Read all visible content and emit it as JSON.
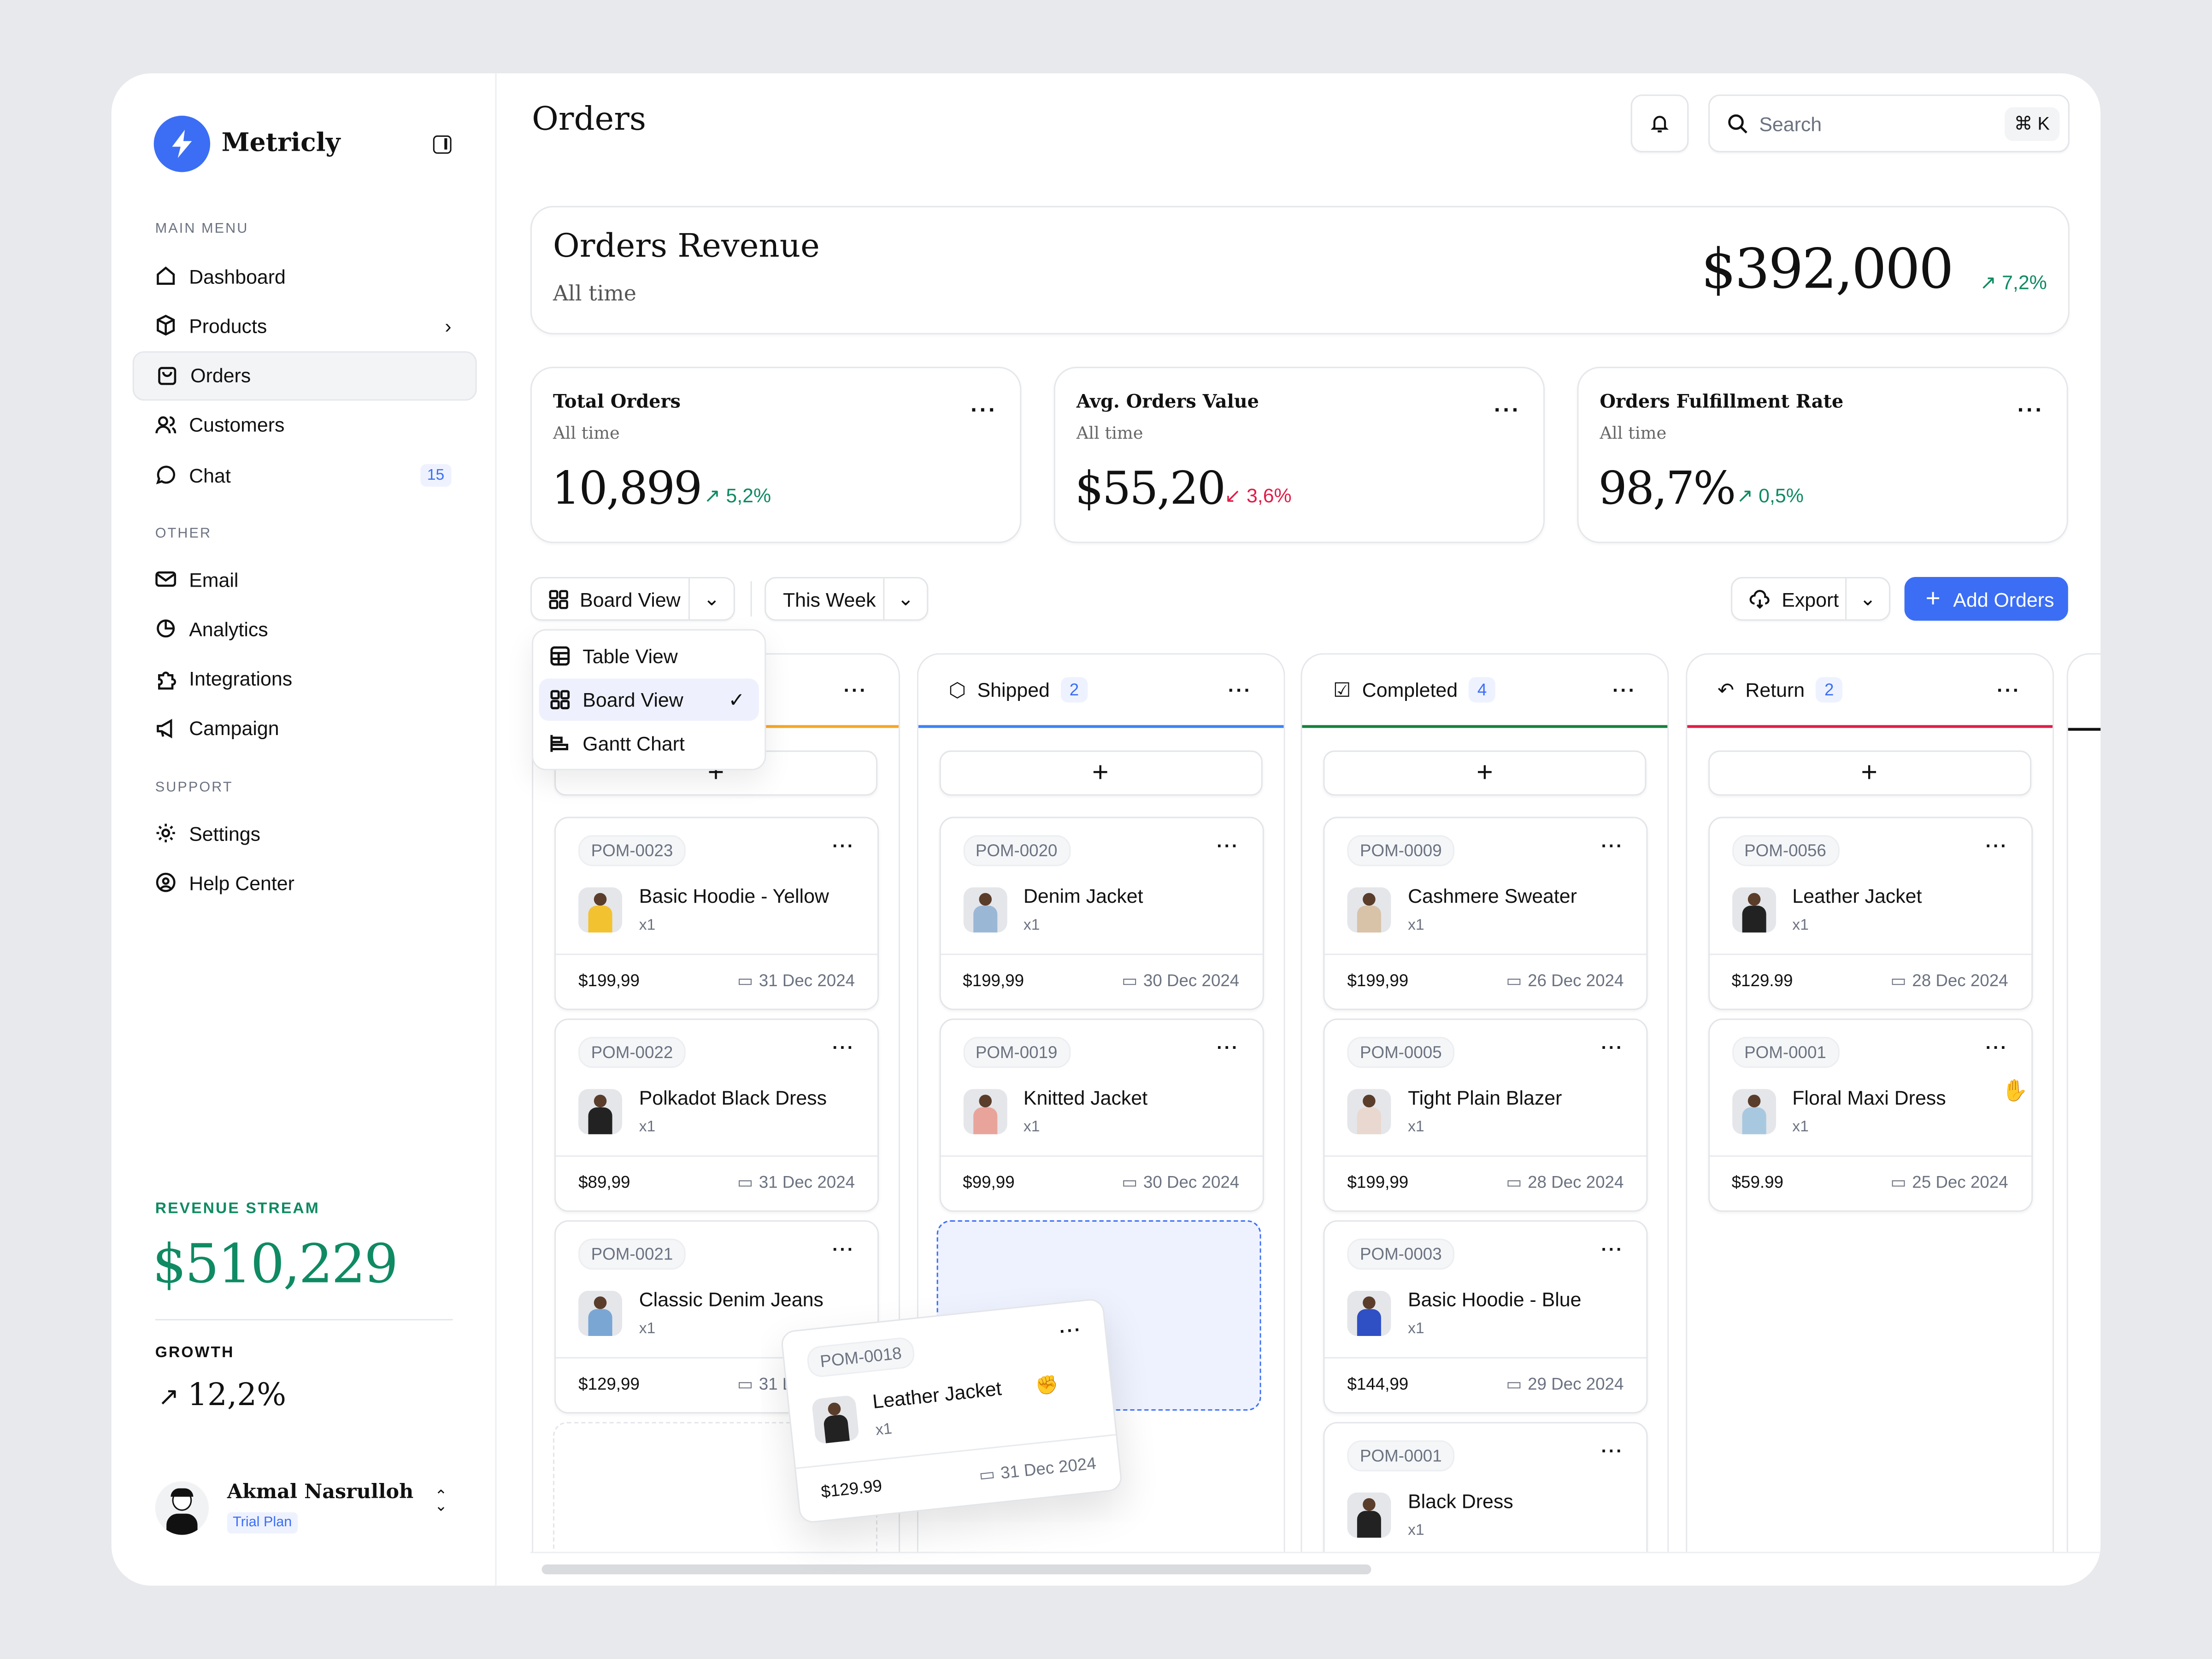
{
  "brand": {
    "name": "Metricly",
    "logo_icon": "lightning-icon",
    "accent": "#3b6ef5"
  },
  "sidebar": {
    "main_menu_label": "MAIN MENU",
    "main_items": [
      {
        "label": "Dashboard",
        "icon": "home-icon"
      },
      {
        "label": "Products",
        "icon": "box-icon"
      },
      {
        "label": "Orders",
        "icon": "bag-icon",
        "active": true
      },
      {
        "label": "Customers",
        "icon": "users-icon"
      },
      {
        "label": "Chat",
        "icon": "chat-icon",
        "badge": "15"
      }
    ],
    "other_label": "OTHER",
    "other_items": [
      {
        "label": "Email",
        "icon": "mail-icon"
      },
      {
        "label": "Analytics",
        "icon": "pie-icon"
      },
      {
        "label": "Integrations",
        "icon": "puzzle-icon"
      },
      {
        "label": "Campaign",
        "icon": "megaphone-icon"
      }
    ],
    "support_label": "SUPPORT",
    "support_items": [
      {
        "label": "Settings",
        "icon": "gear-icon"
      },
      {
        "label": "Help Center",
        "icon": "help-icon"
      }
    ],
    "revenue_label": "REVENUE STREAM",
    "revenue_value": "$510,229",
    "growth_label": "GROWTH",
    "growth_value": "12,2%",
    "user": {
      "name": "Akmal Nasrulloh",
      "plan": "Trial Plan"
    }
  },
  "header": {
    "title": "Orders",
    "search_placeholder": "Search",
    "search_shortcut": "⌘ K"
  },
  "revenue": {
    "title": "Orders Revenue",
    "subtitle": "All time",
    "value": "$392,000",
    "change": "7,2%",
    "direction": "up"
  },
  "stats": [
    {
      "title": "Total Orders",
      "subtitle": "All time",
      "value": "10,899",
      "change": "5,2%",
      "direction": "up"
    },
    {
      "title": "Avg. Orders Value",
      "subtitle": "All time",
      "value": "$55,20",
      "change": "3,6%",
      "direction": "down"
    },
    {
      "title": "Orders Fulfillment Rate",
      "subtitle": "All time",
      "value": "98,7%",
      "change": "0,5%",
      "direction": "up"
    }
  ],
  "toolbar": {
    "view": "Board View",
    "period": "This Week",
    "export": "Export",
    "add": "Add Orders"
  },
  "view_menu": [
    {
      "label": "Table View"
    },
    {
      "label": "Board View",
      "selected": true
    },
    {
      "label": "Gantt Chart"
    }
  ],
  "columns": [
    {
      "label": "",
      "color": "#f5a623",
      "cards": [
        {
          "id": "POM-0023",
          "name": "Basic Hoodie - Yellow",
          "qty": "x1",
          "price": "$199,99",
          "date": "31 Dec 2024",
          "tone": "#f2c230"
        },
        {
          "id": "POM-0022",
          "name": "Polkadot Black Dress",
          "qty": "x1",
          "price": "$89,99",
          "date": "31 Dec 2024",
          "tone": "#222"
        },
        {
          "id": "POM-0021",
          "name": "Classic Denim Jeans",
          "qty": "x1",
          "price": "$129,99",
          "date": "31 Dec 2024",
          "tone": "#7aa6d4"
        }
      ]
    },
    {
      "label": "Shipped",
      "count": "2",
      "color": "#3b82f6",
      "icon": "package-icon",
      "cards": [
        {
          "id": "POM-0020",
          "name": "Denim Jacket",
          "qty": "x1",
          "price": "$199,99",
          "date": "30 Dec 2024",
          "tone": "#9bb7d6"
        },
        {
          "id": "POM-0019",
          "name": "Knitted Jacket",
          "qty": "x1",
          "price": "$99,99",
          "date": "30 Dec 2024",
          "tone": "#e8a49a"
        }
      ]
    },
    {
      "label": "Completed",
      "count": "4",
      "color": "#15803d",
      "icon": "check-square-icon",
      "cards": [
        {
          "id": "POM-0009",
          "name": "Cashmere Sweater",
          "qty": "x1",
          "price": "$199,99",
          "date": "26 Dec 2024",
          "tone": "#d8c2a8"
        },
        {
          "id": "POM-0005",
          "name": "Tight Plain Blazer",
          "qty": "x1",
          "price": "$199,99",
          "date": "28 Dec 2024",
          "tone": "#e9d8cf"
        },
        {
          "id": "POM-0003",
          "name": "Basic Hoodie - Blue",
          "qty": "x1",
          "price": "$144,99",
          "date": "29 Dec 2024",
          "tone": "#2f4fc4"
        },
        {
          "id": "POM-0001",
          "name": "Black Dress",
          "qty": "x1",
          "price": "",
          "date": "",
          "tone": "#222"
        }
      ]
    },
    {
      "label": "Return",
      "count": "2",
      "color": "#e11d48",
      "icon": "return-icon",
      "cards": [
        {
          "id": "POM-0056",
          "name": "Leather Jacket",
          "qty": "x1",
          "price": "$129.99",
          "date": "28 Dec 2024",
          "tone": "#222"
        },
        {
          "id": "POM-0001",
          "name": "Floral Maxi Dress",
          "qty": "x1",
          "price": "$59.99",
          "date": "25 Dec 2024",
          "tone": "#a8c8e0"
        }
      ]
    }
  ],
  "dragged_card": {
    "id": "POM-0018",
    "name": "Leather Jacket",
    "qty": "x1",
    "price": "$129.99",
    "date": "31 Dec 2024",
    "tone": "#222"
  }
}
